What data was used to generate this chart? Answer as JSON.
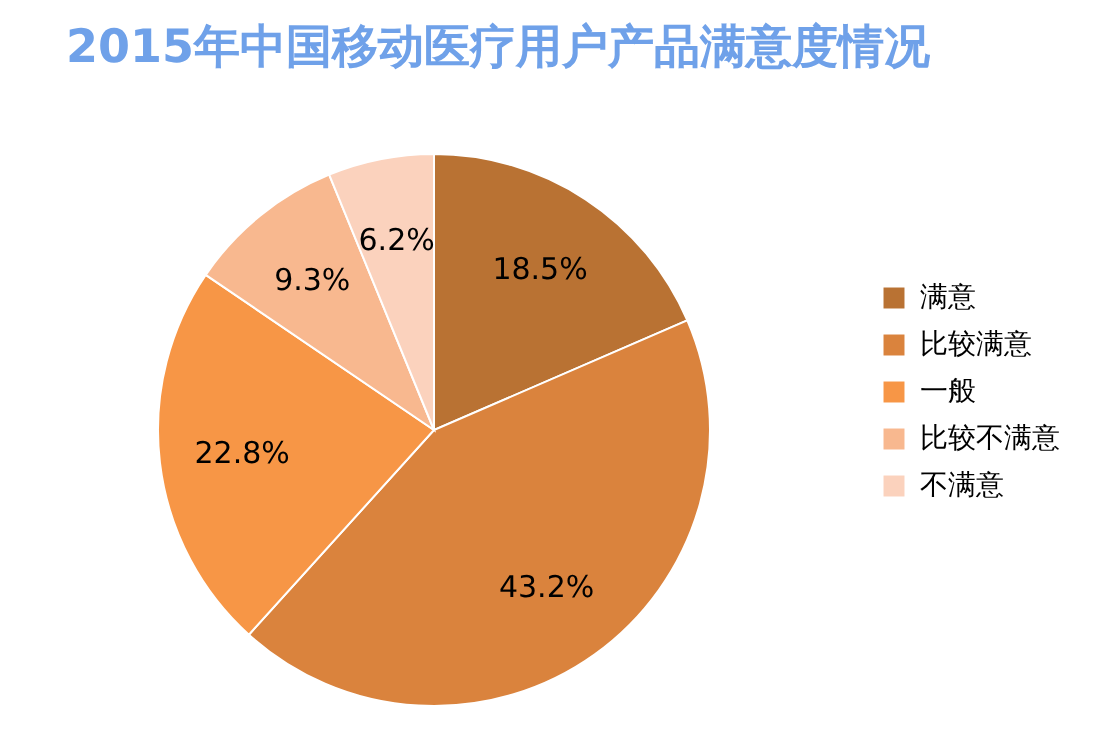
{
  "chart_data": {
    "type": "pie",
    "title": "2015年中国移动医疗用户产品满意度情况",
    "categories": [
      "满意",
      "比较满意",
      "一般",
      "比较不满意",
      "不满意"
    ],
    "values": [
      18.5,
      43.2,
      22.8,
      9.3,
      6.2
    ],
    "colors": [
      "#b97233",
      "#da833d",
      "#f79646",
      "#f8b88f",
      "#fbd2bd"
    ],
    "value_labels": [
      "18.5%",
      "43.2%",
      "22.8%",
      "9.3%",
      "6.2%"
    ],
    "legend": "right"
  }
}
